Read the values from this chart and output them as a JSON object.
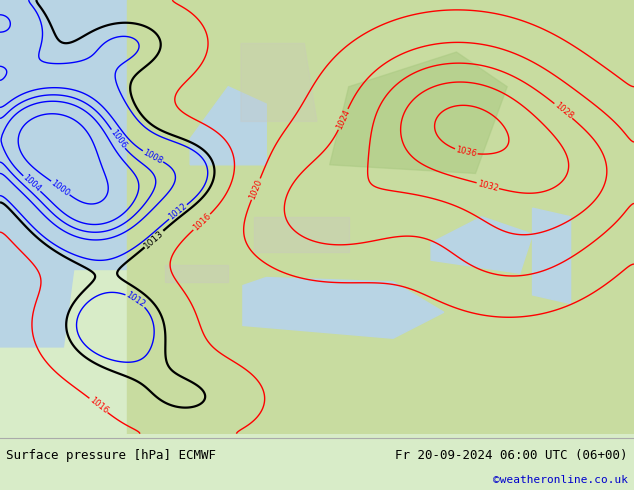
{
  "title_left": "Surface pressure [hPa] ECMWF",
  "title_right": "Fr 20-09-2024 06:00 UTC (06+00)",
  "copyright": "©weatheronline.co.uk",
  "bg_color": "#d8ecc8",
  "footer_bg": "#d8d8d8",
  "copyright_color": "#0000cc",
  "fig_width": 6.34,
  "fig_height": 4.9,
  "dpi": 100,
  "red_levels": [
    1016,
    1020,
    1024,
    1028,
    1032,
    1036
  ],
  "blue_levels": [
    1000,
    1004,
    1006,
    1008,
    1012
  ],
  "black_levels": [
    1013
  ],
  "red_levels_south": [
    1016
  ]
}
